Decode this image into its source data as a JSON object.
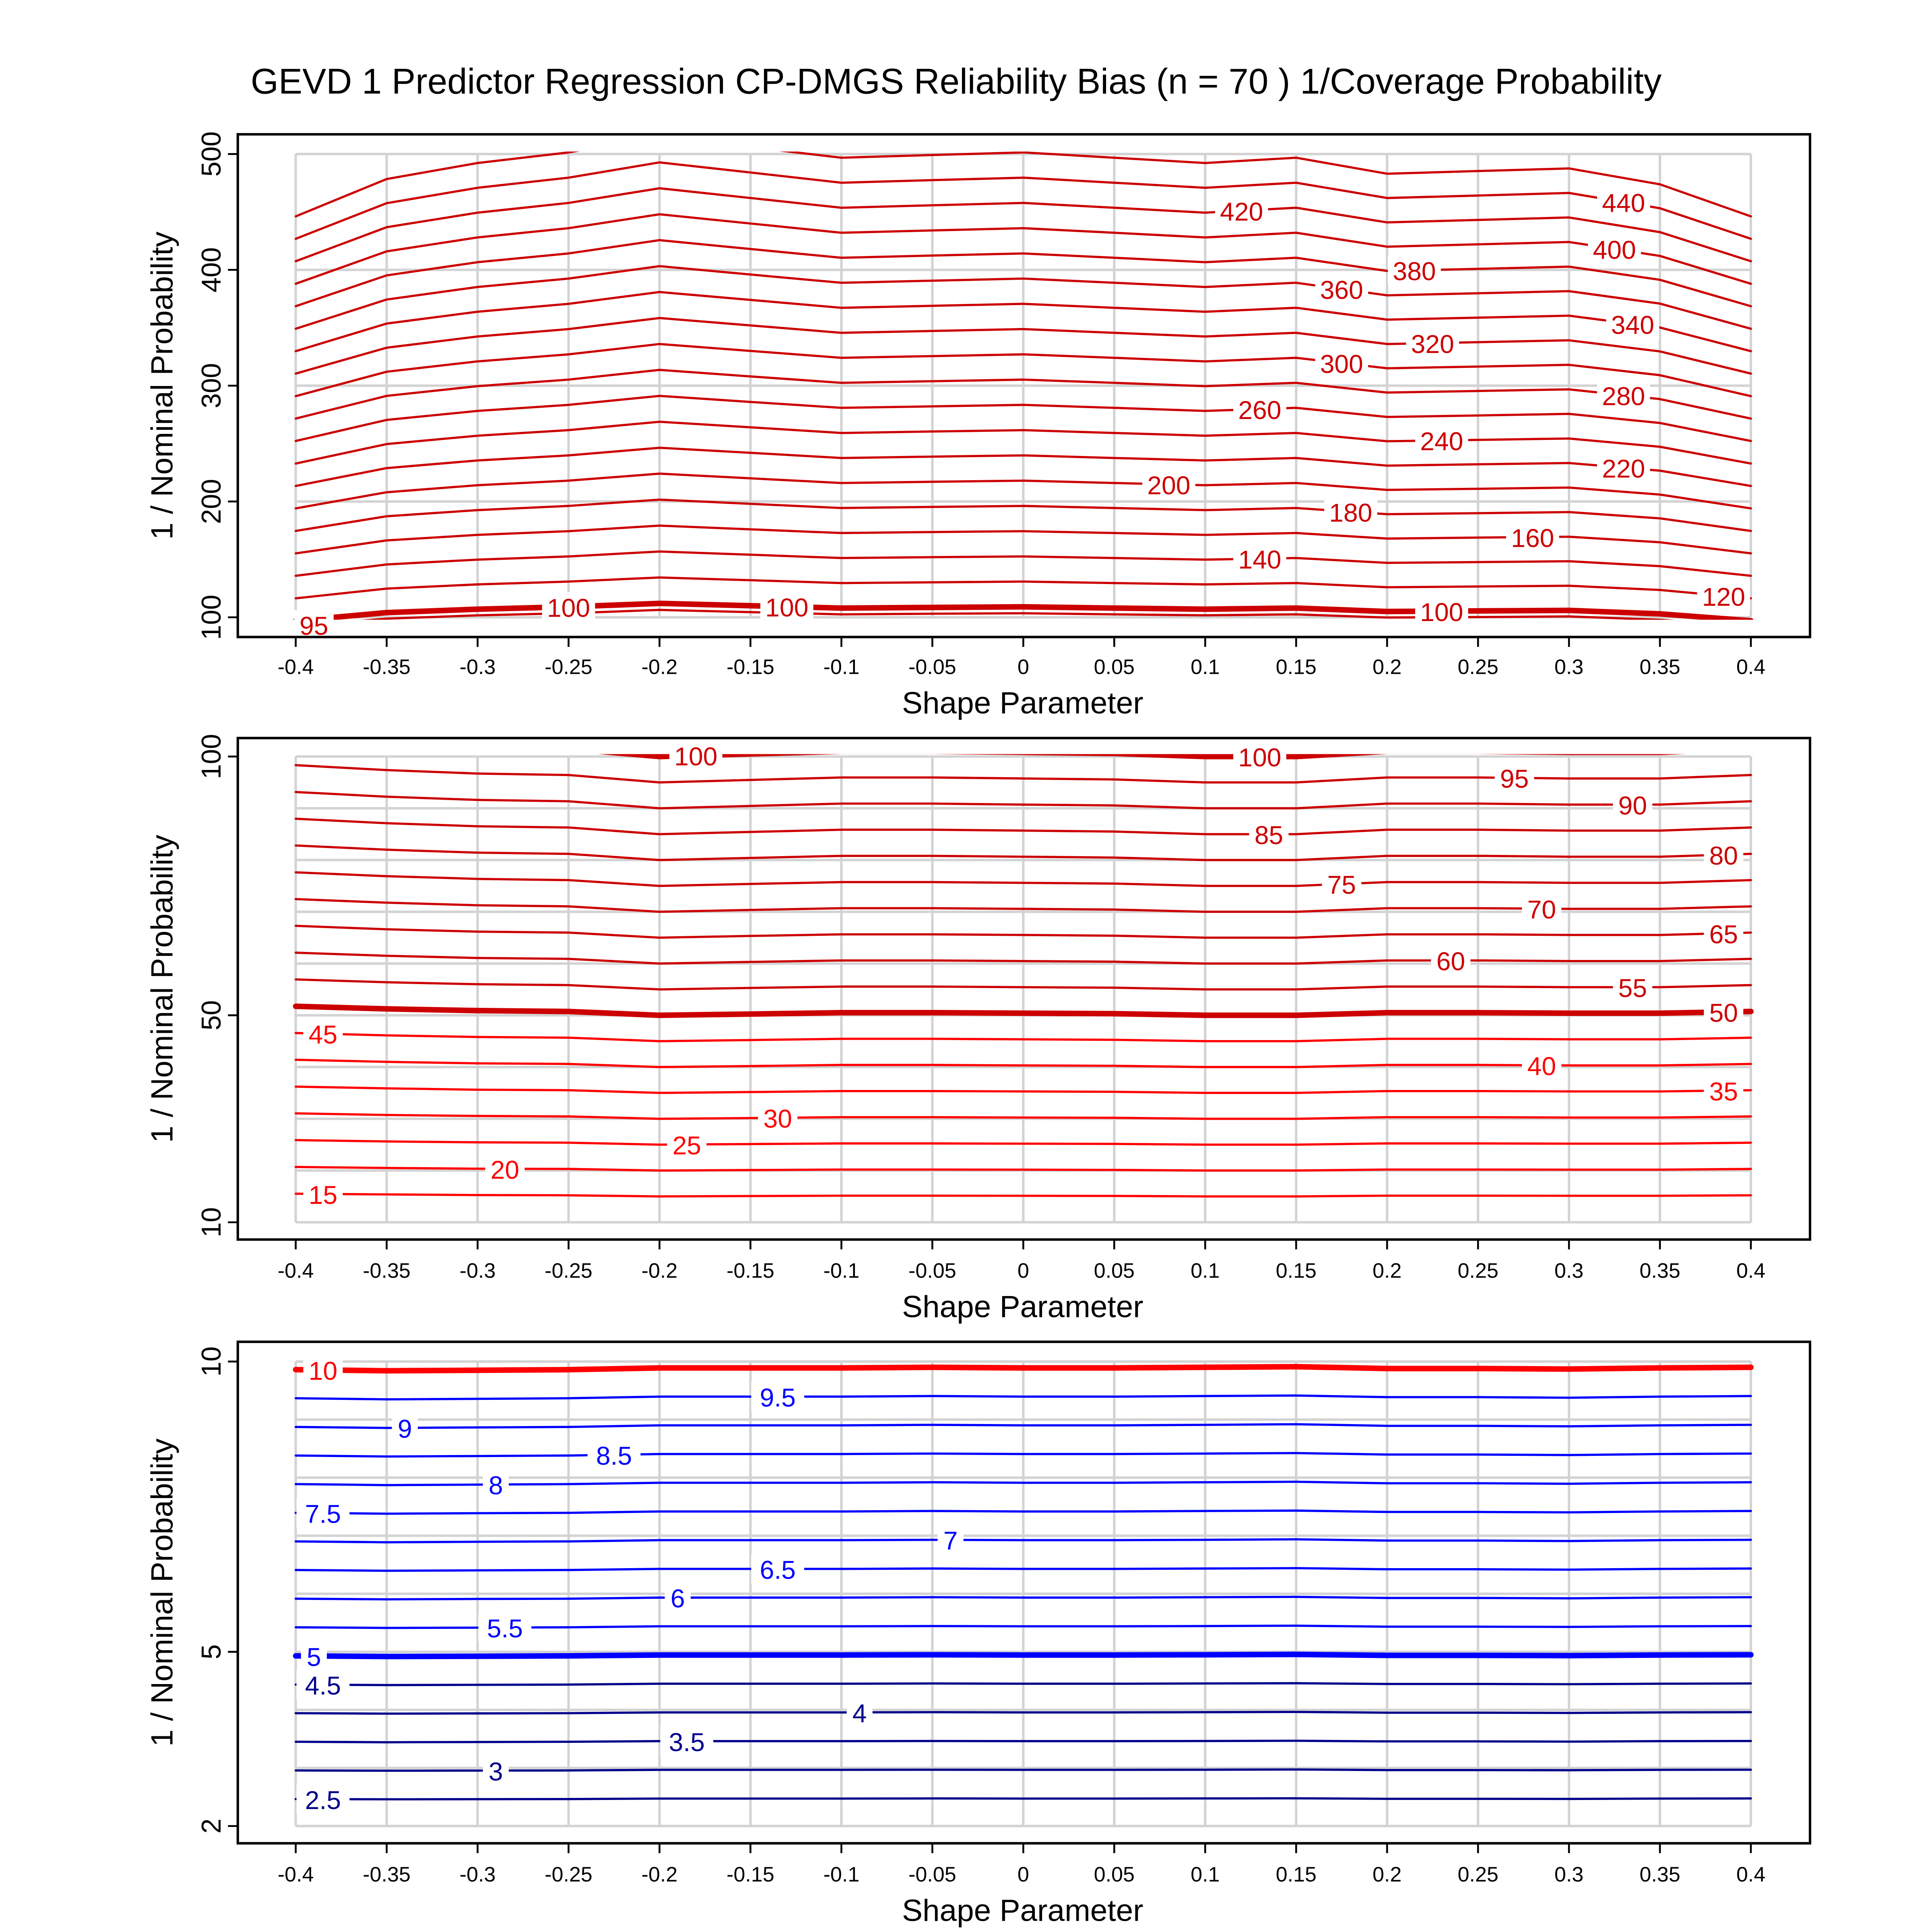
{
  "chart_data": {
    "title": "GEVD 1 Predictor Regression CP-DMGS Reliability Bias (n = 70 ) 1/Coverage Probability",
    "type": "contour",
    "panels": [
      {
        "id": "top",
        "xlabel": "Shape Parameter",
        "ylabel": "1 / Nominal Probability",
        "xlim": [
          -0.4,
          0.4
        ],
        "ylim": [
          100,
          500
        ],
        "xticks": [
          -0.4,
          -0.35,
          -0.3,
          -0.25,
          -0.2,
          -0.15,
          -0.1,
          -0.05,
          0,
          0.05,
          0.1,
          0.15,
          0.2,
          0.25,
          0.3,
          0.35,
          0.4
        ],
        "xtick_labels": [
          "-0.4",
          "-0.35",
          "-0.3",
          "-0.25",
          "-0.2",
          "-0.15",
          "-0.1",
          "-0.05",
          "0",
          "0.05",
          "0.1",
          "0.15",
          "0.2",
          "0.25",
          "0.3",
          "0.35",
          "0.4"
        ],
        "yticks": [
          100,
          200,
          300,
          400,
          500
        ],
        "ytick_labels": [
          "100",
          "200",
          "300",
          "400",
          "500"
        ],
        "ygrid": [
          100,
          200,
          300,
          400,
          500
        ],
        "shape_x": [
          -0.4,
          -0.35,
          -0.3,
          -0.25,
          -0.2,
          -0.15,
          -0.1,
          -0.05,
          0,
          0.05,
          0.1,
          0.15,
          0.2,
          0.25,
          0.3,
          0.35,
          0.4
        ],
        "nominal_over_coverage_factor": [
          0.97,
          1.04,
          1.07,
          1.09,
          1.12,
          1.1,
          1.08,
          1.085,
          1.09,
          1.08,
          1.07,
          1.08,
          1.05,
          1.055,
          1.06,
          1.03,
          0.97
        ],
        "contours": [
          {
            "level": 100,
            "color": "#cc0000",
            "thick": true,
            "labels": [
              {
                "x": -0.25,
                "text": "100"
              },
              {
                "x": -0.13,
                "text": "100"
              },
              {
                "x": 0.23,
                "text": "100"
              }
            ]
          },
          {
            "level": 95,
            "color": "#cc0000",
            "thick": false,
            "labels": [
              {
                "x": -0.39,
                "text": "95"
              }
            ]
          },
          {
            "level": 120,
            "color": "#cc0000",
            "thick": false,
            "labels": [
              {
                "x": 0.385,
                "text": "120"
              }
            ]
          },
          {
            "level": 140,
            "color": "#cc0000",
            "thick": false,
            "labels": [
              {
                "x": 0.13,
                "text": "140"
              }
            ]
          },
          {
            "level": 160,
            "color": "#cc0000",
            "thick": false,
            "labels": [
              {
                "x": 0.28,
                "text": "160"
              }
            ]
          },
          {
            "level": 180,
            "color": "#cc0000",
            "thick": false,
            "labels": [
              {
                "x": 0.18,
                "text": "180"
              }
            ]
          },
          {
            "level": 200,
            "color": "#cc0000",
            "thick": false,
            "labels": [
              {
                "x": 0.08,
                "text": "200"
              }
            ]
          },
          {
            "level": 220,
            "color": "#cc0000",
            "thick": false,
            "labels": [
              {
                "x": 0.33,
                "text": "220"
              }
            ]
          },
          {
            "level": 240,
            "color": "#cc0000",
            "thick": false,
            "labels": [
              {
                "x": 0.23,
                "text": "240"
              }
            ]
          },
          {
            "level": 260,
            "color": "#cc0000",
            "thick": false,
            "labels": [
              {
                "x": 0.13,
                "text": "260"
              }
            ]
          },
          {
            "level": 280,
            "color": "#cc0000",
            "thick": false,
            "labels": [
              {
                "x": 0.33,
                "text": "280"
              }
            ]
          },
          {
            "level": 300,
            "color": "#cc0000",
            "thick": false,
            "labels": [
              {
                "x": 0.175,
                "text": "300"
              }
            ]
          },
          {
            "level": 320,
            "color": "#cc0000",
            "thick": false,
            "labels": [
              {
                "x": 0.225,
                "text": "320"
              }
            ]
          },
          {
            "level": 340,
            "color": "#cc0000",
            "thick": false,
            "labels": [
              {
                "x": 0.335,
                "text": "340"
              }
            ]
          },
          {
            "level": 360,
            "color": "#cc0000",
            "thick": false,
            "labels": [
              {
                "x": 0.175,
                "text": "360"
              }
            ]
          },
          {
            "level": 380,
            "color": "#cc0000",
            "thick": false,
            "labels": [
              {
                "x": 0.215,
                "text": "380"
              }
            ]
          },
          {
            "level": 400,
            "color": "#cc0000",
            "thick": false,
            "labels": [
              {
                "x": 0.325,
                "text": "400"
              }
            ]
          },
          {
            "level": 420,
            "color": "#cc0000",
            "thick": false,
            "labels": [
              {
                "x": 0.12,
                "text": "420"
              }
            ]
          },
          {
            "level": 440,
            "color": "#cc0000",
            "thick": false,
            "labels": [
              {
                "x": 0.33,
                "text": "440"
              }
            ]
          },
          {
            "level": 460,
            "color": "#cc0000",
            "thick": false,
            "labels": []
          }
        ]
      },
      {
        "id": "middle",
        "xlabel": "Shape Parameter",
        "ylabel": "1 / Nominal Probability",
        "xlim": [
          -0.4,
          0.4
        ],
        "ylim": [
          10,
          100
        ],
        "xticks": [
          -0.4,
          -0.35,
          -0.3,
          -0.25,
          -0.2,
          -0.15,
          -0.1,
          -0.05,
          0,
          0.05,
          0.1,
          0.15,
          0.2,
          0.25,
          0.3,
          0.35,
          0.4
        ],
        "xtick_labels": [
          "-0.4",
          "-0.35",
          "-0.3",
          "-0.25",
          "-0.2",
          "-0.15",
          "-0.1",
          "-0.05",
          "0",
          "0.05",
          "0.1",
          "0.15",
          "0.2",
          "0.25",
          "0.3",
          "0.35",
          "0.4"
        ],
        "yticks": [
          10,
          50,
          100
        ],
        "ytick_labels": [
          "10",
          "50",
          "100"
        ],
        "ygrid": [
          10,
          20,
          30,
          40,
          50,
          60,
          70,
          80,
          90,
          100
        ],
        "shape_x": [
          -0.4,
          -0.35,
          -0.3,
          -0.25,
          -0.2,
          -0.15,
          -0.1,
          -0.05,
          0,
          0.05,
          0.1,
          0.15,
          0.2,
          0.25,
          0.3,
          0.35,
          0.4
        ],
        "nominal_over_coverage_factor": [
          1.035,
          1.025,
          1.018,
          1.015,
          1.0,
          1.005,
          1.01,
          1.01,
          1.008,
          1.006,
          1.0,
          1.0,
          1.01,
          1.01,
          1.008,
          1.008,
          1.015
        ],
        "contours": [
          {
            "level": 15,
            "color": "#ff0000",
            "thick": false,
            "labels": [
              {
                "x": -0.385,
                "text": "15"
              }
            ]
          },
          {
            "level": 20,
            "color": "#ff0000",
            "thick": false,
            "labels": [
              {
                "x": -0.285,
                "text": "20"
              }
            ]
          },
          {
            "level": 25,
            "color": "#ff0000",
            "thick": false,
            "labels": [
              {
                "x": -0.185,
                "text": "25"
              }
            ]
          },
          {
            "level": 30,
            "color": "#ff0000",
            "thick": false,
            "labels": [
              {
                "x": -0.135,
                "text": "30"
              }
            ]
          },
          {
            "level": 35,
            "color": "#ff0000",
            "thick": false,
            "labels": [
              {
                "x": 0.385,
                "text": "35"
              }
            ]
          },
          {
            "level": 40,
            "color": "#ff0000",
            "thick": false,
            "labels": [
              {
                "x": 0.285,
                "text": "40"
              }
            ]
          },
          {
            "level": 45,
            "color": "#ff0000",
            "thick": false,
            "labels": [
              {
                "x": -0.385,
                "text": "45"
              }
            ]
          },
          {
            "level": 50,
            "color": "#cc0000",
            "thick": true,
            "labels": [
              {
                "x": 0.385,
                "text": "50"
              }
            ]
          },
          {
            "level": 55,
            "color": "#cc0000",
            "thick": false,
            "labels": [
              {
                "x": 0.335,
                "text": "55"
              }
            ]
          },
          {
            "level": 60,
            "color": "#cc0000",
            "thick": false,
            "labels": [
              {
                "x": 0.235,
                "text": "60"
              }
            ]
          },
          {
            "level": 65,
            "color": "#cc0000",
            "thick": false,
            "labels": [
              {
                "x": 0.385,
                "text": "65"
              }
            ]
          },
          {
            "level": 70,
            "color": "#cc0000",
            "thick": false,
            "labels": [
              {
                "x": 0.285,
                "text": "70"
              }
            ]
          },
          {
            "level": 75,
            "color": "#cc0000",
            "thick": false,
            "labels": [
              {
                "x": 0.175,
                "text": "75"
              }
            ]
          },
          {
            "level": 80,
            "color": "#cc0000",
            "thick": false,
            "labels": [
              {
                "x": 0.385,
                "text": "80"
              }
            ]
          },
          {
            "level": 85,
            "color": "#cc0000",
            "thick": false,
            "labels": [
              {
                "x": 0.135,
                "text": "85"
              }
            ]
          },
          {
            "level": 90,
            "color": "#cc0000",
            "thick": false,
            "labels": [
              {
                "x": 0.335,
                "text": "90"
              }
            ]
          },
          {
            "level": 95,
            "color": "#cc0000",
            "thick": false,
            "labels": [
              {
                "x": 0.27,
                "text": "95"
              }
            ]
          },
          {
            "level": 100,
            "color": "#cc0000",
            "thick": true,
            "labels": [
              {
                "x": -0.18,
                "text": "100"
              },
              {
                "x": 0.13,
                "text": "100"
              }
            ]
          }
        ]
      },
      {
        "id": "bottom",
        "xlabel": "Shape Parameter",
        "ylabel": "1 / Nominal Probability",
        "xlim": [
          -0.4,
          0.4
        ],
        "ylim": [
          2,
          10
        ],
        "xticks": [
          -0.4,
          -0.35,
          -0.3,
          -0.25,
          -0.2,
          -0.15,
          -0.1,
          -0.05,
          0,
          0.05,
          0.1,
          0.15,
          0.2,
          0.25,
          0.3,
          0.35,
          0.4
        ],
        "xtick_labels": [
          "-0.4",
          "-0.35",
          "-0.3",
          "-0.25",
          "-0.2",
          "-0.15",
          "-0.1",
          "-0.05",
          "0",
          "0.05",
          "0.1",
          "0.15",
          "0.2",
          "0.25",
          "0.3",
          "0.35",
          "0.4"
        ],
        "yticks": [
          2,
          5,
          10
        ],
        "ytick_labels": [
          "2",
          "5",
          "10"
        ],
        "ygrid": [
          2,
          3,
          4,
          5,
          6,
          7,
          8,
          9,
          10
        ],
        "shape_x": [
          -0.4,
          -0.35,
          -0.3,
          -0.25,
          -0.2,
          -0.15,
          -0.1,
          -0.05,
          0,
          0.05,
          0.1,
          0.15,
          0.2,
          0.25,
          0.3,
          0.35,
          0.4
        ],
        "nominal_over_coverage_factor": [
          0.986,
          0.984,
          0.985,
          0.986,
          0.989,
          0.989,
          0.989,
          0.99,
          0.989,
          0.989,
          0.99,
          0.991,
          0.988,
          0.988,
          0.987,
          0.989,
          0.99
        ],
        "contours": [
          {
            "level": 2.5,
            "color": "#00008b",
            "thick": false,
            "labels": [
              {
                "x": -0.385,
                "text": "2.5"
              }
            ]
          },
          {
            "level": 3,
            "color": "#00008b",
            "thick": false,
            "labels": [
              {
                "x": -0.29,
                "text": "3"
              }
            ]
          },
          {
            "level": 3.5,
            "color": "#00008b",
            "thick": false,
            "labels": [
              {
                "x": -0.185,
                "text": "3.5"
              }
            ]
          },
          {
            "level": 4,
            "color": "#00008b",
            "thick": false,
            "labels": [
              {
                "x": -0.09,
                "text": "4"
              }
            ]
          },
          {
            "level": 4.5,
            "color": "#00008b",
            "thick": false,
            "labels": [
              {
                "x": -0.385,
                "text": "4.5"
              }
            ]
          },
          {
            "level": 5,
            "color": "#0000ff",
            "thick": true,
            "labels": [
              {
                "x": -0.39,
                "text": "5"
              }
            ]
          },
          {
            "level": 5.5,
            "color": "#0000ff",
            "thick": false,
            "labels": [
              {
                "x": -0.285,
                "text": "5.5"
              }
            ]
          },
          {
            "level": 6,
            "color": "#0000ff",
            "thick": false,
            "labels": [
              {
                "x": -0.19,
                "text": "6"
              }
            ]
          },
          {
            "level": 6.5,
            "color": "#0000ff",
            "thick": false,
            "labels": [
              {
                "x": -0.135,
                "text": "6.5"
              }
            ]
          },
          {
            "level": 7,
            "color": "#0000ff",
            "thick": false,
            "labels": [
              {
                "x": -0.04,
                "text": "7"
              }
            ]
          },
          {
            "level": 7.5,
            "color": "#0000ff",
            "thick": false,
            "labels": [
              {
                "x": -0.385,
                "text": "7.5"
              }
            ]
          },
          {
            "level": 8,
            "color": "#0000ff",
            "thick": false,
            "labels": [
              {
                "x": -0.29,
                "text": "8"
              }
            ]
          },
          {
            "level": 8.5,
            "color": "#0000ff",
            "thick": false,
            "labels": [
              {
                "x": -0.225,
                "text": "8.5"
              }
            ]
          },
          {
            "level": 9,
            "color": "#0000ff",
            "thick": false,
            "labels": [
              {
                "x": -0.34,
                "text": "9"
              }
            ]
          },
          {
            "level": 9.5,
            "color": "#0000ff",
            "thick": false,
            "labels": [
              {
                "x": -0.135,
                "text": "9.5"
              }
            ]
          },
          {
            "level": 10,
            "color": "#ff0000",
            "thick": true,
            "labels": [
              {
                "x": -0.385,
                "text": "10"
              }
            ]
          }
        ]
      }
    ]
  }
}
